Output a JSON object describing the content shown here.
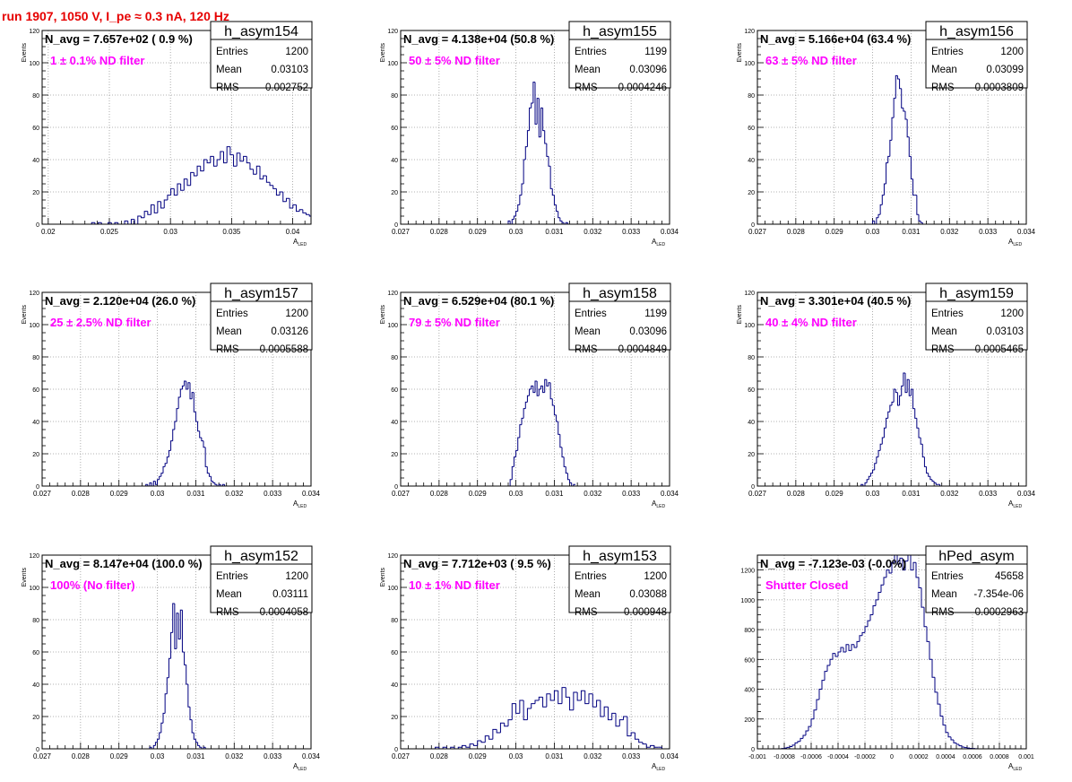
{
  "run_title": "run 1907,  1050 V, I_pe ≈ 0.3 nA, 120 Hz",
  "colors": {
    "hist": "#000080",
    "annotation": "#ff00ff",
    "title": "#e60000",
    "grid": "#9a9a9a"
  },
  "chart_data": [
    {
      "type": "bar",
      "name": "h_asym154",
      "annotation": "N_avg = 7.657e+02 ( 0.9 %)",
      "filter_label": "1 ± 0.1% ND filter",
      "stats": {
        "Entries": "1200",
        "Mean": "0.03103",
        "RMS": "0.002752"
      },
      "xlabel": "A_LED",
      "ylabel": "Events",
      "xlim": [
        0.0195,
        0.0415
      ],
      "ylim": [
        0,
        120
      ],
      "xticks": [
        0.02,
        0.025,
        0.03,
        0.035,
        0.04
      ],
      "xtick_labels": [
        "0.02",
        "0.025",
        "0.03",
        "0.035",
        "0.04"
      ],
      "yticks": [
        0,
        20,
        40,
        60,
        80,
        100,
        120
      ],
      "ytick_labels": [
        "0",
        "20",
        "40",
        "60",
        "80",
        "100",
        "120"
      ],
      "bins": {
        "start": 0.0195,
        "width": 0.00027
      },
      "values": [
        0,
        0,
        0,
        0,
        0,
        0,
        0,
        0,
        0,
        0,
        0,
        0,
        0,
        0,
        0,
        1,
        0,
        1,
        0,
        0,
        1,
        0,
        1,
        0,
        0,
        2,
        0,
        3,
        0,
        5,
        4,
        8,
        6,
        12,
        7,
        14,
        10,
        15,
        18,
        22,
        18,
        25,
        21,
        28,
        24,
        32,
        30,
        36,
        33,
        40,
        38,
        42,
        36,
        40,
        45,
        38,
        48,
        43,
        36,
        44,
        39,
        42,
        38,
        34,
        31,
        36,
        28,
        30,
        26,
        24,
        22,
        18,
        20,
        14,
        16,
        10,
        12,
        8,
        9,
        7,
        6,
        5,
        8,
        4,
        6,
        3,
        6,
        2,
        3,
        1,
        2,
        0,
        1,
        0,
        0,
        0,
        0,
        0,
        0,
        0,
        0,
        0,
        0,
        0,
        0,
        0,
        0,
        0,
        0,
        0,
        0,
        0,
        0,
        0,
        0,
        0,
        0,
        0,
        0,
        0,
        0,
        0,
        0,
        0,
        0,
        0,
        0,
        0,
        0,
        0,
        0
      ]
    },
    {
      "type": "bar",
      "name": "h_asym155",
      "annotation": "N_avg = 4.138e+04 (50.8 %)",
      "filter_label": "50 ± 5% ND filter",
      "stats": {
        "Entries": "1199",
        "Mean": "0.03096",
        "RMS": "0.0004246"
      },
      "xlabel": "A_LED",
      "ylabel": "Events",
      "xlim": [
        0.027,
        0.034
      ],
      "ylim": [
        0,
        120
      ],
      "xticks": [
        0.027,
        0.028,
        0.029,
        0.03,
        0.031,
        0.032,
        0.033,
        0.034
      ],
      "xtick_labels": [
        "0.027",
        "0.028",
        "0.029",
        "0.03",
        "0.031",
        "0.032",
        "0.033",
        "0.034"
      ],
      "yticks": [
        0,
        20,
        40,
        60,
        80,
        100,
        120
      ],
      "ytick_labels": [
        "0",
        "20",
        "40",
        "60",
        "80",
        "100",
        "120"
      ],
      "bins": {
        "start": 0.0298,
        "width": 5e-05
      },
      "values": [
        2,
        0,
        3,
        5,
        8,
        12,
        18,
        25,
        40,
        48,
        58,
        72,
        75,
        88,
        62,
        78,
        54,
        72,
        58,
        50,
        42,
        36,
        22,
        18,
        12,
        8,
        4,
        2,
        1,
        0,
        1,
        0,
        0,
        0
      ]
    },
    {
      "type": "bar",
      "name": "h_asym156",
      "annotation": "N_avg = 5.166e+04 (63.4 %)",
      "filter_label": "63 ± 5% ND filter",
      "stats": {
        "Entries": "1200",
        "Mean": "0.03099",
        "RMS": "0.0003809"
      },
      "xlabel": "A_LED",
      "ylabel": "Events",
      "xlim": [
        0.027,
        0.034
      ],
      "ylim": [
        0,
        120
      ],
      "xticks": [
        0.027,
        0.028,
        0.029,
        0.03,
        0.031,
        0.032,
        0.033,
        0.034
      ],
      "xtick_labels": [
        "0.027",
        "0.028",
        "0.029",
        "0.03",
        "0.031",
        "0.032",
        "0.033",
        "0.034"
      ],
      "yticks": [
        0,
        20,
        40,
        60,
        80,
        100,
        120
      ],
      "ytick_labels": [
        "0",
        "20",
        "40",
        "60",
        "80",
        "100",
        "120"
      ],
      "bins": {
        "start": 0.03,
        "width": 5e-05
      },
      "values": [
        2,
        0,
        4,
        6,
        12,
        18,
        25,
        38,
        42,
        52,
        66,
        78,
        92,
        90,
        84,
        72,
        70,
        65,
        54,
        42,
        28,
        18,
        18,
        6,
        2,
        1,
        0,
        0
      ]
    },
    {
      "type": "bar",
      "name": "h_asym157",
      "annotation": "N_avg = 2.120e+04 (26.0 %)",
      "filter_label": "25 ± 2.5% ND filter",
      "stats": {
        "Entries": "1200",
        "Mean": "0.03126",
        "RMS": "0.0005588"
      },
      "xlabel": "A_LED",
      "ylabel": "Events",
      "xlim": [
        0.027,
        0.034
      ],
      "ylim": [
        0,
        120
      ],
      "xticks": [
        0.027,
        0.028,
        0.029,
        0.03,
        0.031,
        0.032,
        0.033,
        0.034
      ],
      "xtick_labels": [
        "0.027",
        "0.028",
        "0.029",
        "0.03",
        "0.031",
        "0.032",
        "0.033",
        "0.034"
      ],
      "yticks": [
        0,
        20,
        40,
        60,
        80,
        100,
        120
      ],
      "ytick_labels": [
        "0",
        "20",
        "40",
        "60",
        "80",
        "100",
        "120"
      ],
      "bins": {
        "start": 0.0297,
        "width": 5e-05
      },
      "values": [
        1,
        0,
        2,
        0,
        3,
        1,
        4,
        6,
        8,
        12,
        14,
        18,
        22,
        28,
        35,
        40,
        48,
        55,
        60,
        62,
        65,
        60,
        64,
        54,
        58,
        46,
        40,
        34,
        30,
        28,
        24,
        12,
        8,
        6,
        3,
        2,
        1,
        0,
        1,
        0,
        1,
        0,
        0
      ]
    },
    {
      "type": "bar",
      "name": "h_asym158",
      "annotation": "N_avg = 6.529e+04 (80.1 %)",
      "filter_label": "79 ± 5% ND filter",
      "stats": {
        "Entries": "1199",
        "Mean": "0.03096",
        "RMS": "0.0004849"
      },
      "xlabel": "A_LED",
      "ylabel": "Events",
      "xlim": [
        0.027,
        0.034
      ],
      "ylim": [
        0,
        120
      ],
      "xticks": [
        0.027,
        0.028,
        0.029,
        0.03,
        0.031,
        0.032,
        0.033,
        0.034
      ],
      "xtick_labels": [
        "0.027",
        "0.028",
        "0.029",
        "0.03",
        "0.031",
        "0.032",
        "0.033",
        "0.034"
      ],
      "yticks": [
        0,
        20,
        40,
        60,
        80,
        100,
        120
      ],
      "ytick_labels": [
        "0",
        "20",
        "40",
        "60",
        "80",
        "100",
        "120"
      ],
      "bins": {
        "start": 0.02985,
        "width": 5e-05
      },
      "values": [
        4,
        12,
        18,
        22,
        30,
        38,
        42,
        48,
        52,
        56,
        60,
        62,
        58,
        65,
        56,
        60,
        62,
        58,
        66,
        62,
        64,
        54,
        50,
        44,
        40,
        32,
        24,
        18,
        12,
        8,
        4,
        2,
        0,
        1
      ]
    },
    {
      "type": "bar",
      "name": "h_asym159",
      "annotation": "N_avg = 3.301e+04 (40.5 %)",
      "filter_label": "40 ± 4% ND filter",
      "stats": {
        "Entries": "1200",
        "Mean": "0.03103",
        "RMS": "0.0005465"
      },
      "xlabel": "A_LED",
      "ylabel": "Events",
      "xlim": [
        0.027,
        0.034
      ],
      "ylim": [
        0,
        120
      ],
      "xticks": [
        0.027,
        0.028,
        0.029,
        0.03,
        0.031,
        0.032,
        0.033,
        0.034
      ],
      "xtick_labels": [
        "0.027",
        "0.028",
        "0.029",
        "0.03",
        "0.031",
        "0.032",
        "0.033",
        "0.034"
      ],
      "yticks": [
        0,
        20,
        40,
        60,
        80,
        100,
        120
      ],
      "ytick_labels": [
        "0",
        "20",
        "40",
        "60",
        "80",
        "100",
        "120"
      ],
      "bins": {
        "start": 0.0297,
        "width": 5e-05
      },
      "values": [
        1,
        0,
        2,
        4,
        6,
        8,
        10,
        14,
        18,
        22,
        26,
        30,
        36,
        42,
        46,
        50,
        52,
        60,
        58,
        50,
        56,
        62,
        70,
        58,
        66,
        56,
        60,
        48,
        42,
        36,
        30,
        26,
        18,
        12,
        8,
        6,
        4,
        3,
        2,
        1,
        1,
        0,
        0
      ]
    },
    {
      "type": "bar",
      "name": "h_asym152",
      "annotation": "N_avg = 8.147e+04 (100.0 %)",
      "filter_label": "100% (No filter)",
      "stats": {
        "Entries": "1200",
        "Mean": "0.03111",
        "RMS": "0.0004058"
      },
      "xlabel": "A_LED",
      "ylabel": "Events",
      "xlim": [
        0.027,
        0.034
      ],
      "ylim": [
        0,
        120
      ],
      "xticks": [
        0.027,
        0.028,
        0.029,
        0.03,
        0.031,
        0.032,
        0.033,
        0.034
      ],
      "xtick_labels": [
        "0.027",
        "0.028",
        "0.029",
        "0.03",
        "0.031",
        "0.032",
        "0.033",
        "0.034"
      ],
      "yticks": [
        0,
        20,
        40,
        60,
        80,
        100,
        120
      ],
      "ytick_labels": [
        "0",
        "20",
        "40",
        "60",
        "80",
        "100",
        "120"
      ],
      "bins": {
        "start": 0.0298,
        "width": 5e-05
      },
      "values": [
        1,
        0,
        2,
        4,
        6,
        10,
        16,
        22,
        34,
        44,
        56,
        72,
        90,
        62,
        84,
        68,
        86,
        60,
        52,
        40,
        26,
        18,
        10,
        6,
        4,
        2,
        1,
        0,
        1,
        0
      ]
    },
    {
      "type": "bar",
      "name": "h_asym153",
      "annotation": "N_avg = 7.712e+03 ( 9.5 %)",
      "filter_label": "10 ± 1% ND filter",
      "stats": {
        "Entries": "1200",
        "Mean": "0.03088",
        "RMS": "0.000948"
      },
      "xlabel": "A_LED",
      "ylabel": "Events",
      "xlim": [
        0.027,
        0.034
      ],
      "ylim": [
        0,
        120
      ],
      "xticks": [
        0.027,
        0.028,
        0.029,
        0.03,
        0.031,
        0.032,
        0.033,
        0.034
      ],
      "xtick_labels": [
        "0.027",
        "0.028",
        "0.029",
        "0.03",
        "0.031",
        "0.032",
        "0.033",
        "0.034"
      ],
      "yticks": [
        0,
        20,
        40,
        60,
        80,
        100,
        120
      ],
      "ytick_labels": [
        "0",
        "20",
        "40",
        "60",
        "80",
        "100",
        "120"
      ],
      "bins": {
        "start": 0.0279,
        "width": 0.0001
      },
      "values": [
        1,
        0,
        1,
        0,
        1,
        0,
        1,
        2,
        1,
        3,
        2,
        5,
        4,
        8,
        6,
        12,
        10,
        16,
        14,
        18,
        28,
        22,
        30,
        18,
        25,
        28,
        30,
        32,
        26,
        34,
        30,
        36,
        28,
        38,
        32,
        24,
        35,
        30,
        36,
        28,
        34,
        26,
        30,
        20,
        26,
        18,
        22,
        14,
        18,
        20,
        8,
        10,
        6,
        4,
        3,
        1,
        2,
        1,
        1,
        0,
        0,
        0,
        0,
        0
      ]
    },
    {
      "type": "bar",
      "name": "hPed_asym",
      "annotation": "N_avg = -7.123e-03 (-0.0%)",
      "filter_label": "Shutter Closed",
      "stats": {
        "Entries": "45658",
        "Mean": "-7.354e-06",
        "RMS": "0.0002963"
      },
      "xlabel": "A_LED",
      "ylabel": "",
      "xlim": [
        -0.001,
        0.001
      ],
      "ylim": [
        0,
        1300
      ],
      "xticks": [
        -0.001,
        -0.0008,
        -0.0006,
        -0.0004,
        -0.0002,
        0,
        0.0002,
        0.0004,
        0.0006,
        0.0008,
        0.001
      ],
      "xtick_labels": [
        "-0.001",
        "-0.0008",
        "-0.0006",
        "-0.0004",
        "-0.0002",
        "0",
        "0.0002",
        "0.0004",
        "0.0006",
        "0.0008",
        "0.001"
      ],
      "yticks": [
        0,
        200,
        400,
        600,
        800,
        1000,
        1200
      ],
      "ytick_labels": [
        "0",
        "200",
        "400",
        "600",
        "800",
        "1000",
        "1200"
      ],
      "bins": {
        "start": -0.001,
        "width": 2e-05
      },
      "values": [
        0,
        0,
        0,
        0,
        0,
        0,
        0,
        0,
        0,
        2,
        5,
        10,
        15,
        25,
        40,
        50,
        70,
        90,
        120,
        150,
        200,
        260,
        330,
        400,
        460,
        520,
        560,
        600,
        640,
        620,
        650,
        680,
        650,
        700,
        660,
        700,
        680,
        720,
        760,
        780,
        820,
        860,
        900,
        960,
        1000,
        1050,
        1100,
        1150,
        1200,
        1180,
        1250,
        1300,
        1240,
        1280,
        1200,
        1260,
        1300,
        1200,
        1250,
        1150,
        1080,
        950,
        820,
        720,
        600,
        480,
        380,
        300,
        220,
        160,
        110,
        80,
        60,
        40,
        30,
        20,
        12,
        8,
        5,
        3,
        2,
        1,
        0,
        0,
        0,
        0,
        0,
        0,
        0,
        0,
        0,
        0,
        0,
        0,
        0,
        0,
        0,
        0,
        0,
        0,
        0
      ]
    }
  ]
}
